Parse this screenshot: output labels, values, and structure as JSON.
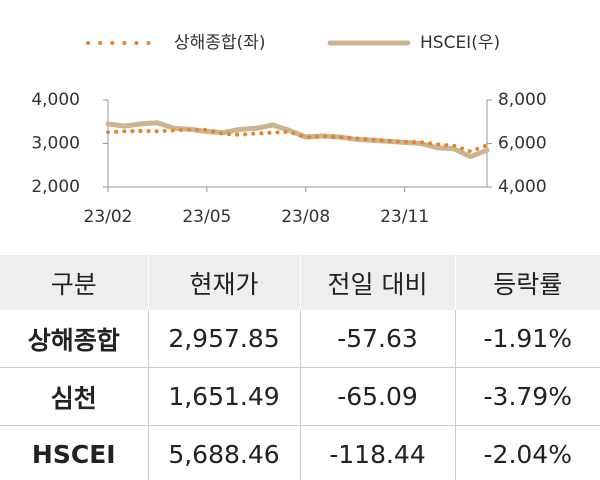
{
  "chart_data": {
    "type": "line",
    "categories": [
      "23/02",
      null,
      null,
      null,
      null,
      null,
      "23/05",
      null,
      null,
      null,
      null,
      null,
      "23/08",
      null,
      null,
      null,
      null,
      null,
      "23/11",
      null,
      null,
      null,
      null,
      null
    ],
    "series": [
      {
        "name": "상해종합(좌)",
        "color": "#e8832a",
        "style": "dotted",
        "values": [
          3260,
          3280,
          3290,
          3280,
          3300,
          3320,
          3310,
          3220,
          3200,
          3230,
          3250,
          3270,
          3140,
          3160,
          3150,
          3120,
          3090,
          3060,
          3040,
          3030,
          2980,
          2950,
          2820,
          2958
        ]
      },
      {
        "name": "HSCEI(우)",
        "color": "#c9b591",
        "style": "solid",
        "axis": "y2",
        "values": [
          6900,
          6800,
          6900,
          6950,
          6700,
          6650,
          6550,
          6500,
          6650,
          6700,
          6850,
          6600,
          6300,
          6350,
          6300,
          6200,
          6150,
          6100,
          6050,
          6000,
          5800,
          5750,
          5400,
          5688
        ]
      }
    ],
    "ylim": [
      2000,
      4000
    ],
    "yticks": [
      {
        "value": 4000,
        "label": "4,000"
      },
      {
        "value": 3000,
        "label": "3,000"
      },
      {
        "value": 2000,
        "label": "2,000"
      }
    ],
    "y2lim": [
      4000,
      8000
    ],
    "y2ticks": [
      {
        "value": 8000,
        "label": "8,000"
      },
      {
        "value": 6000,
        "label": "6,000"
      },
      {
        "value": 4000,
        "label": "4,000"
      }
    ],
    "legend": "top"
  },
  "table": {
    "header": [
      "구분",
      "현재가",
      "전일 대비",
      "등락률"
    ],
    "rows": [
      [
        "상해종합",
        "2,957.85",
        "-57.63",
        "-1.91%"
      ],
      [
        "심천",
        "1,651.49",
        "-65.09",
        "-3.79%"
      ],
      [
        "HSCEI",
        "5,688.46",
        "-118.44",
        "-2.04%"
      ]
    ]
  }
}
